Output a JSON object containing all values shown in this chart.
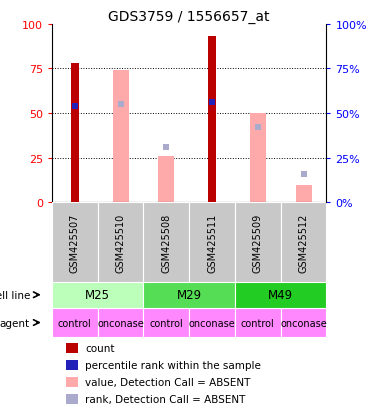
{
  "title": "GDS3759 / 1556657_at",
  "samples": [
    "GSM425507",
    "GSM425510",
    "GSM425508",
    "GSM425511",
    "GSM425509",
    "GSM425512"
  ],
  "cell_lines": [
    {
      "label": "M25",
      "cols": [
        0,
        1
      ],
      "color": "#AAFFAA"
    },
    {
      "label": "M29",
      "cols": [
        2,
        3
      ],
      "color": "#55DD55"
    },
    {
      "label": "M49",
      "cols": [
        4,
        5
      ],
      "color": "#22CC22"
    }
  ],
  "agents": [
    "control",
    "onconase",
    "control",
    "onconase",
    "control",
    "onconase"
  ],
  "agent_color": "#FF88FF",
  "sample_bg_color": "#C8C8C8",
  "count_values": [
    78,
    null,
    null,
    93,
    null,
    null
  ],
  "rank_values": [
    54,
    null,
    null,
    56,
    null,
    null
  ],
  "absent_value_values": [
    null,
    74,
    26,
    null,
    50,
    10
  ],
  "absent_rank_values": [
    null,
    55,
    31,
    null,
    42,
    16
  ],
  "ylim": [
    0,
    100
  ],
  "yticks": [
    0,
    25,
    50,
    75,
    100
  ],
  "count_color": "#BB0000",
  "rank_color": "#2222BB",
  "absent_value_color": "#FFAAAA",
  "absent_rank_color": "#AAAACC",
  "count_bar_width": 0.18,
  "absent_value_bar_width": 0.35
}
